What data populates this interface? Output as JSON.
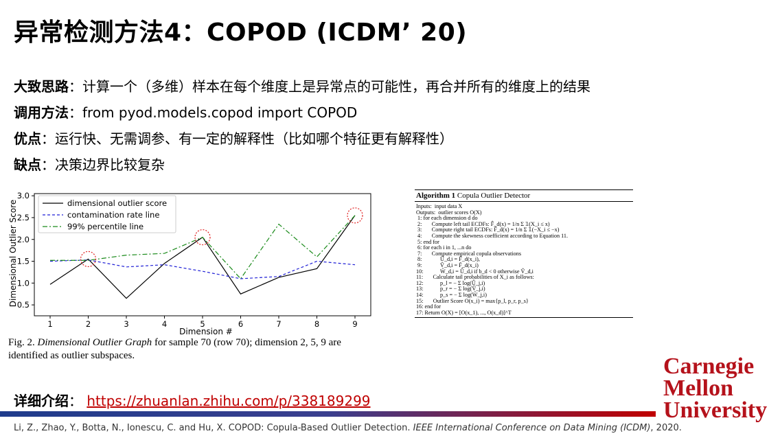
{
  "slide": {
    "title": "异常检测方法4：COPOD (ICDM’ 20)",
    "bullets": [
      {
        "key": "大致思路",
        "sep": "：",
        "text": "计算一个（多维）样本在每个维度上是异常点的可能性，再合并所有的维度上的结果"
      },
      {
        "key": "调用方法",
        "sep": "：",
        "text": "from pyod.models.copod import COPOD"
      },
      {
        "key": "优点",
        "sep": "：",
        "text": "运行快、无需调参、有一定的解释性（比如哪个特征更有解释性）"
      },
      {
        "key": "缺点",
        "sep": "：",
        "text": "决策边界比较复杂"
      }
    ],
    "caption": {
      "prefix": "Fig. 2.",
      "italic": "Dimensional Outlier Graph",
      "rest": "for sample 70 (row 70); dimension 2, 5, 9 are identified as outlier subspaces."
    },
    "algorithm": {
      "label": "Algorithm 1",
      "name": "Copula Outlier Detector",
      "lines": [
        "Inputs:  input data X",
        "Outputs:  outlier scores O(X)",
        " 1: for each dimension d do",
        " 2:       Compute left tail ECDFs: F̂_d(x) = 1/n Σ 𝟙(X_i ≤ x)",
        " 3:       Compute right tail ECDFs: F̄_d(x) = 1/n Σ 𝟙(−X_i ≤ −x)",
        " 4:       Compute the skewness coefficient according to Equation 11.",
        " 5: end for",
        " 6: for each i in 1, ...n do",
        " 7:       Compute empirical copula observations",
        " 8:             Û_d,i = F̂_d(x_i),",
        " 9:             V̂_d,i = F̄_d(x_i)",
        "10:            Ŵ_d,i = Û_d,i if b_d < 0 otherwise V̂_d,i",
        "11:       Calculate tail probabilities of X_i as follows:",
        "12:            p_l = − Σ log(Û_j,i)",
        "13:            p_r = − Σ log(V̂_j,i)",
        "14:            p_s = − Σ log(Ŵ_j,i)",
        "15:       Outlier Score O(x_i) = max{p_l, p_r, p_s}",
        "16: end for",
        "17: Return O(X) = [O(x_1), ..., O(x_d)]^T"
      ]
    },
    "detail": {
      "key": "详细介绍",
      "sep": "：",
      "link": "https://zhuanlan.zhihu.com/p/338189299"
    },
    "reference": {
      "prefix": "Li, Z., Zhao, Y., Botta, N., Ionescu, C. and Hu, X. COPOD: Copula-Based Outlier Detection. ",
      "italic": "IEEE International Conference on Data Mining (ICDM)",
      "suffix": ", 2020."
    },
    "logo": {
      "lines": [
        "Carnegie",
        "Mellon",
        "University"
      ],
      "color": "#b5121b"
    },
    "colors": {
      "bar_left": "#1f3c8c",
      "bar_right": "#c00000",
      "link": "#c00000"
    }
  },
  "chart_data": {
    "type": "line",
    "xlabel": "Dimension #",
    "ylabel": "Dimensional Outlier Score",
    "x": [
      1,
      2,
      3,
      4,
      5,
      6,
      7,
      8,
      9
    ],
    "xticks": [
      "1",
      "2",
      "3",
      "4",
      "5",
      "6",
      "7",
      "8",
      "9"
    ],
    "yticks": [
      "0.5",
      "1.0",
      "1.5",
      "2.0",
      "2.5",
      "3.0"
    ],
    "ylim": [
      0.25,
      3.05
    ],
    "legend_position": "top-left",
    "series": [
      {
        "name": "dimensional outlier score",
        "color": "#000000",
        "style": "solid",
        "values": [
          0.97,
          1.55,
          0.65,
          1.45,
          2.05,
          0.75,
          1.13,
          1.33,
          2.55
        ]
      },
      {
        "name": "contamination rate line",
        "color": "#1f1fd6",
        "style": "dashed",
        "values": [
          1.5,
          1.53,
          1.37,
          1.42,
          1.27,
          1.1,
          1.15,
          1.5,
          1.42
        ]
      },
      {
        "name": "99% percentile line",
        "color": "#1a8a1a",
        "style": "dashdot",
        "values": [
          1.52,
          1.52,
          1.64,
          1.68,
          2.05,
          1.1,
          2.35,
          1.6,
          2.55
        ]
      }
    ],
    "highlighted": [
      2,
      5,
      9
    ],
    "highlight_color": "#e02020"
  }
}
